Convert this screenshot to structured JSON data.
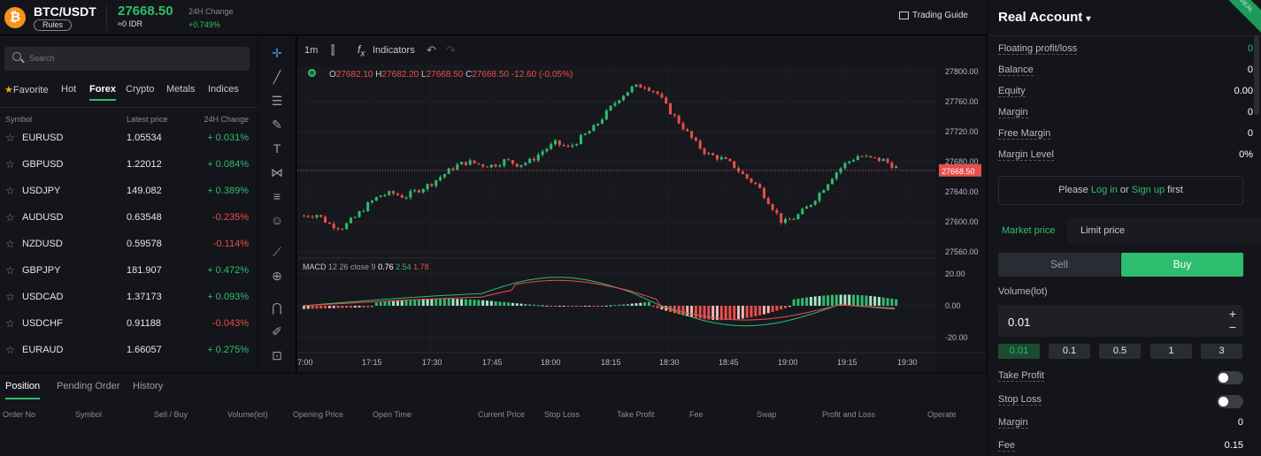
{
  "header": {
    "pair": "BTC/USDT",
    "rules_label": "Rules",
    "coin_symbol": "₿",
    "price": "27668.50",
    "idr": "≈0 IDR",
    "change_label": "24H Change",
    "change_value": "+0.749%",
    "guide": "Trading Guide"
  },
  "market": {
    "search_placeholder": "Search",
    "categories": [
      "Favorite",
      "Hot",
      "Forex",
      "Crypto",
      "Metals",
      "Indices"
    ],
    "active_category": "Forex",
    "columns": [
      "Symbol",
      "Latest price",
      "24H Change"
    ],
    "rows": [
      {
        "symbol": "EURUSD",
        "price": "1.05534",
        "change": "+ 0.031%",
        "dir": "up"
      },
      {
        "symbol": "GBPUSD",
        "price": "1.22012",
        "change": "+ 0.084%",
        "dir": "up"
      },
      {
        "symbol": "USDJPY",
        "price": "149.082",
        "change": "+ 0.389%",
        "dir": "up"
      },
      {
        "symbol": "AUDUSD",
        "price": "0.63548",
        "change": "-0.235%",
        "dir": "down"
      },
      {
        "symbol": "NZDUSD",
        "price": "0.59578",
        "change": "-0.114%",
        "dir": "down"
      },
      {
        "symbol": "GBPJPY",
        "price": "181.907",
        "change": "+ 0.472%",
        "dir": "up"
      },
      {
        "symbol": "USDCAD",
        "price": "1.37173",
        "change": "+ 0.093%",
        "dir": "up"
      },
      {
        "symbol": "USDCHF",
        "price": "0.91188",
        "change": "-0.043%",
        "dir": "down"
      },
      {
        "symbol": "EURAUD",
        "price": "1.66057",
        "change": "+ 0.275%",
        "dir": "up"
      }
    ]
  },
  "chart_toolbar": {
    "interval": "1m",
    "indicators": "Indicators"
  },
  "chart_data": {
    "type": "candlestick",
    "ohlc_label": {
      "o": "27682.10",
      "h": "27682.20",
      "l": "27668.50",
      "c": "27668.50",
      "chg": "-12.60 (-0.05%)"
    },
    "y_ticks": [
      "27800.00",
      "27760.00",
      "27720.00",
      "27680.00",
      "27640.00",
      "27600.00",
      "27560.00"
    ],
    "y_range": [
      27560,
      27800
    ],
    "last_price": "27668.50",
    "x_ticks": [
      "7:00",
      "17:15",
      "17:30",
      "17:45",
      "18:00",
      "18:15",
      "18:30",
      "18:45",
      "19:00",
      "19:15",
      "19:30"
    ],
    "close_path": [
      27608,
      27610,
      27597,
      27592,
      27605,
      27622,
      27635,
      27638,
      27633,
      27642,
      27650,
      27662,
      27674,
      27680,
      27676,
      27675,
      27682,
      27676,
      27681,
      27695,
      27705,
      27698,
      27712,
      27725,
      27745,
      27765,
      27778,
      27782,
      27772,
      27748,
      27728,
      27706,
      27690,
      27685,
      27676,
      27660,
      27648,
      27624,
      27598,
      27606,
      27620,
      27640,
      27662,
      27678,
      27688,
      27684,
      27682,
      27672
    ],
    "macd": {
      "label": "MACD",
      "params": "12 26 close 9",
      "values": [
        "0.76",
        "2.54",
        "1.78"
      ],
      "y_ticks": [
        "20.00",
        "0.00",
        "-20.00"
      ],
      "y_range": [
        -25,
        25
      ]
    }
  },
  "account": {
    "title": "Real Account",
    "tag": "REAL",
    "rows": [
      {
        "label": "Floating profit/loss",
        "value": "0",
        "accent": true
      },
      {
        "label": "Balance",
        "value": "0"
      },
      {
        "label": "Equity",
        "value": "0.00"
      },
      {
        "label": "Margin",
        "value": "0"
      },
      {
        "label": "Free Margin",
        "value": "0"
      },
      {
        "label": "Margin Level",
        "value": "0%"
      }
    ],
    "login": {
      "pre": "Please ",
      "login": "Log in",
      "mid": " or ",
      "signup": "Sign up",
      "post": " first"
    }
  },
  "order": {
    "tabs": [
      "Market price",
      "Limit price"
    ],
    "sell": "Sell",
    "buy": "Buy",
    "volume_label": "Volume(lot)",
    "volume_value": "0.01",
    "lots": [
      "0.01",
      "0.1",
      "0.5",
      "1",
      "3"
    ],
    "take_profit": "Take Profit",
    "stop_loss": "Stop Loss",
    "margin_label": "Margin",
    "margin_value": "0",
    "fee_label": "Fee",
    "fee_value": "0.15"
  },
  "positions": {
    "tabs": [
      "Position",
      "Pending Order",
      "History"
    ],
    "columns": [
      "Order No",
      "Symbol",
      "Sell / Buy",
      "Volume(lot)",
      "Opening Price",
      "Open Time",
      "Current Price",
      "Stop Loss",
      "Take Profit",
      "Fee",
      "Swap",
      "Profit and Loss",
      "Operate"
    ]
  },
  "colors": {
    "up": "#2ebd6e",
    "down": "#e84e4e",
    "bg": "#14151a"
  }
}
